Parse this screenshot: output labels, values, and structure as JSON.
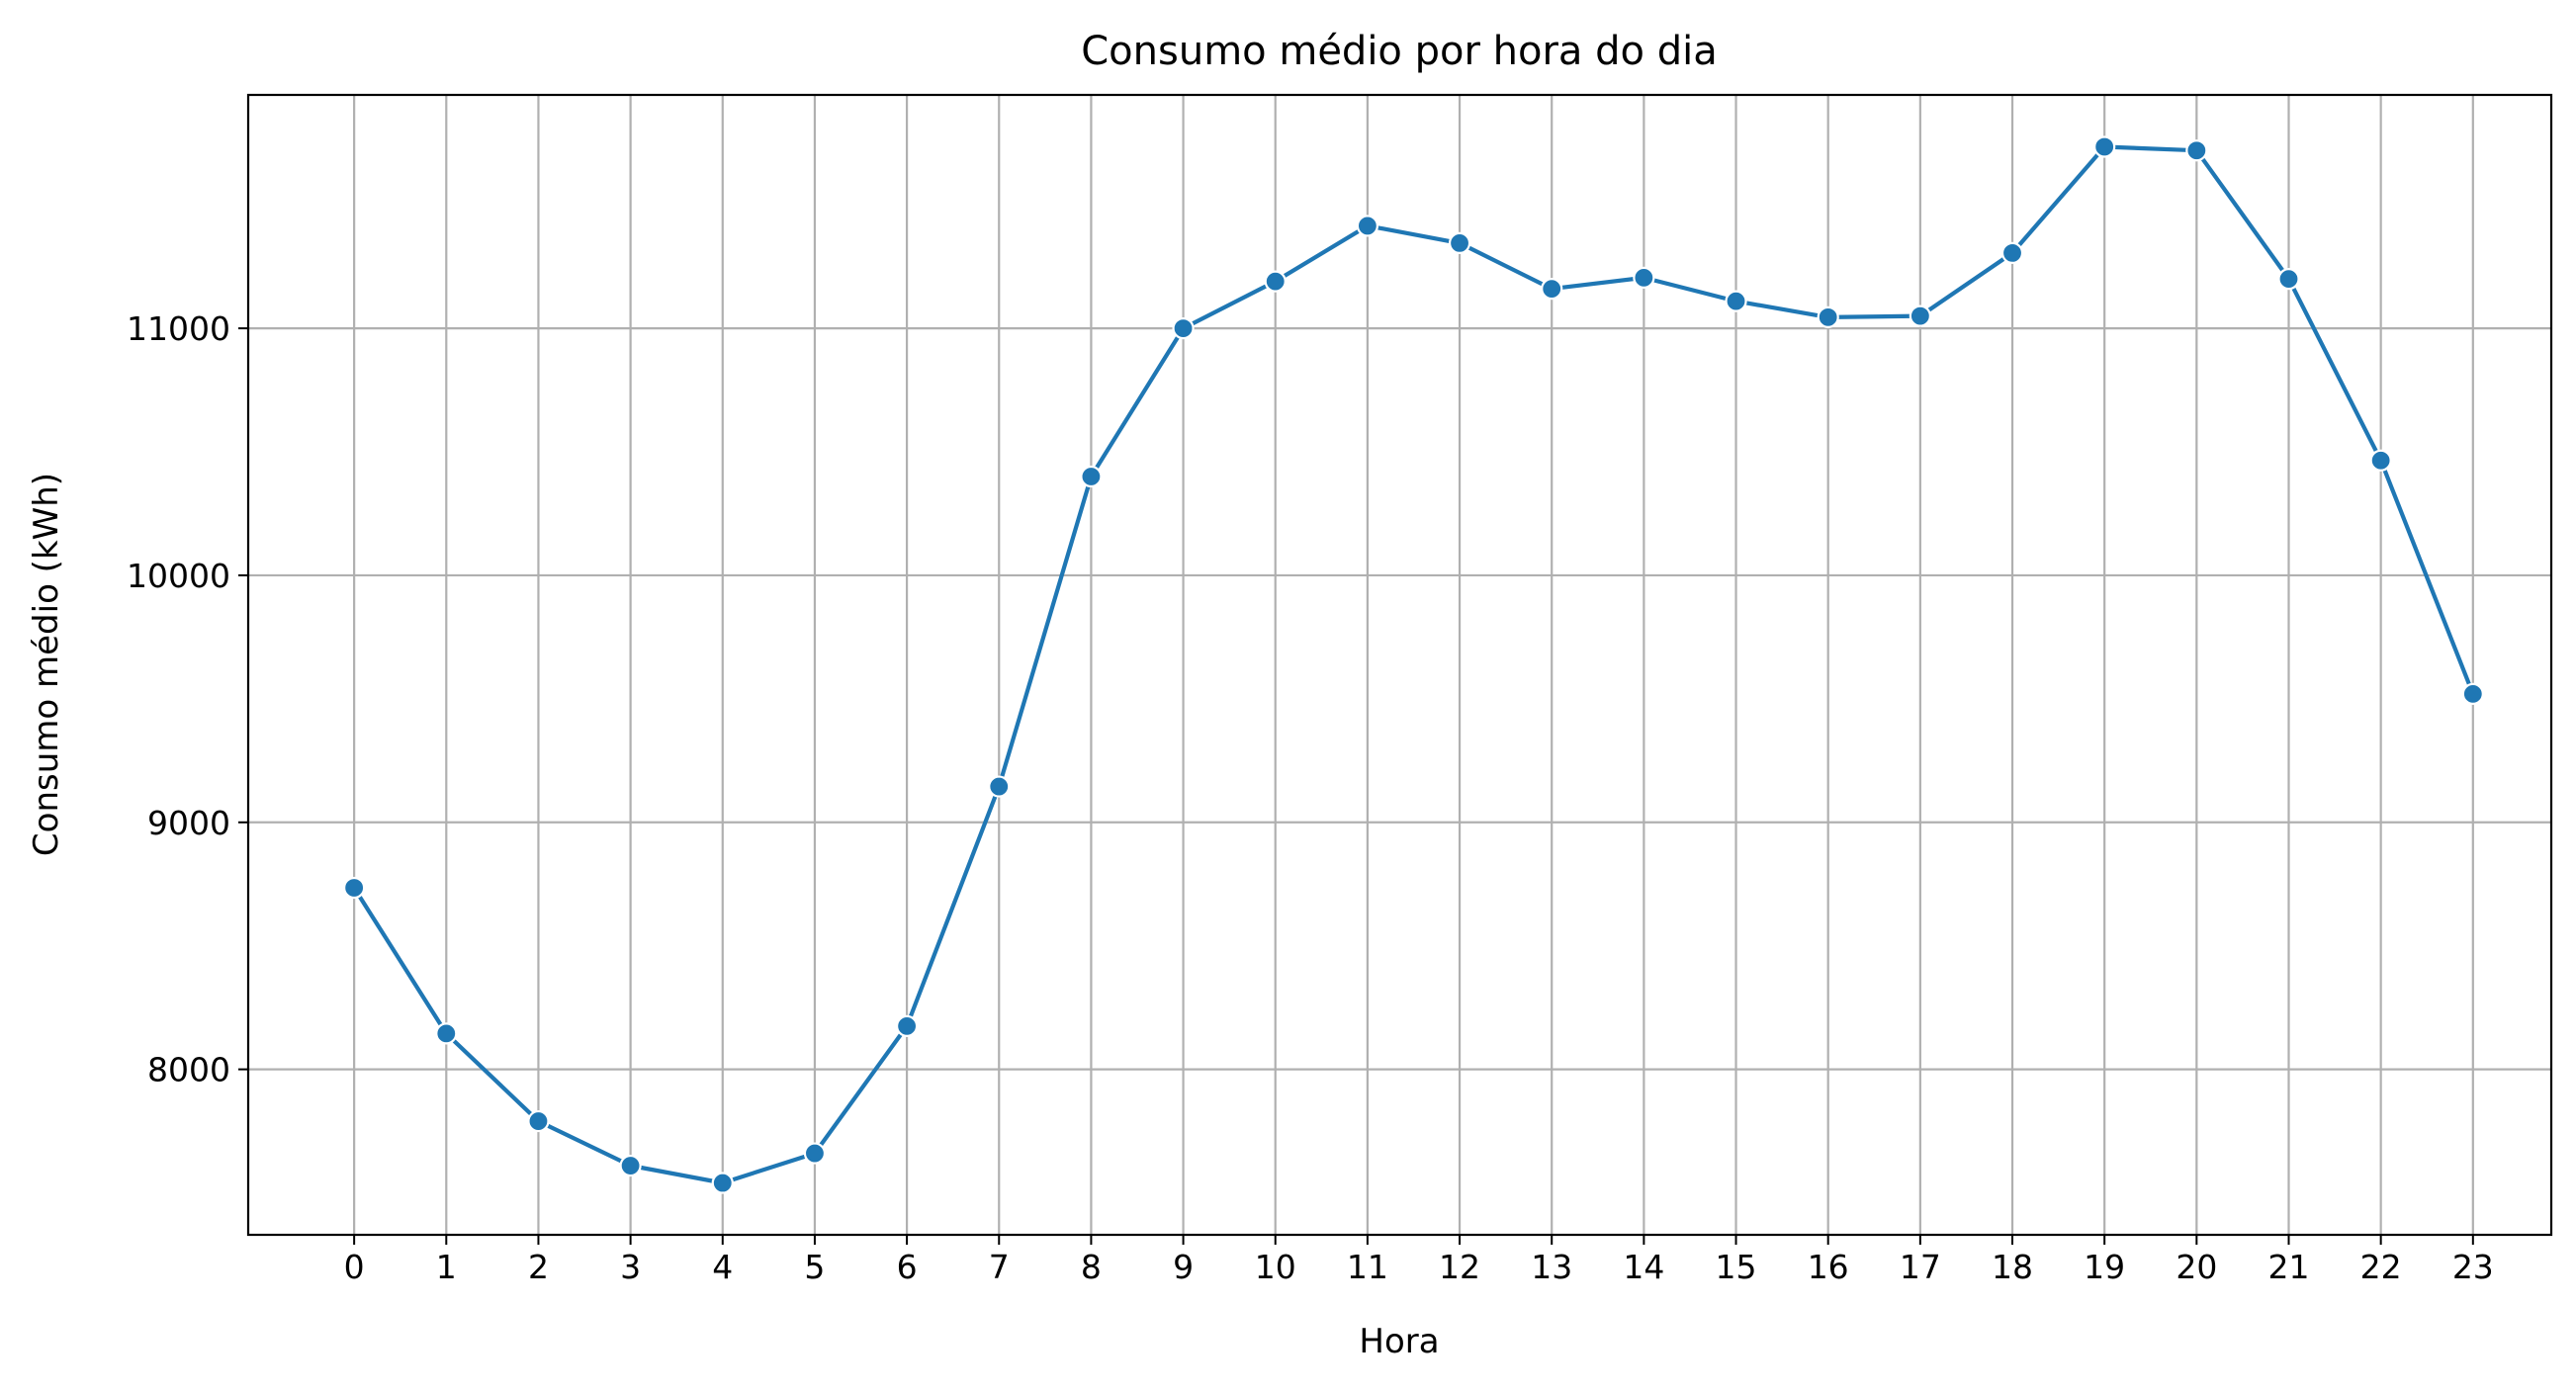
{
  "chart_data": {
    "type": "line",
    "title": "Consumo médio por hora do dia",
    "xlabel": "Hora",
    "ylabel": "Consumo médio (kWh)",
    "x": [
      0,
      1,
      2,
      3,
      4,
      5,
      6,
      7,
      8,
      9,
      10,
      11,
      12,
      13,
      14,
      15,
      16,
      17,
      18,
      19,
      20,
      21,
      22,
      23
    ],
    "xticks": [
      "0",
      "1",
      "2",
      "3",
      "4",
      "5",
      "6",
      "7",
      "8",
      "9",
      "10",
      "11",
      "12",
      "13",
      "14",
      "15",
      "16",
      "17",
      "18",
      "19",
      "20",
      "21",
      "22",
      "23"
    ],
    "series": [
      {
        "values": [
          8735,
          8145,
          7790,
          7610,
          7540,
          7660,
          8175,
          9145,
          10400,
          11000,
          11190,
          11415,
          11345,
          11160,
          11205,
          11110,
          11045,
          11050,
          11305,
          11735,
          11720,
          11200,
          10465,
          9520
        ],
        "color": "#1f77b4"
      }
    ],
    "yticks": [
      8000,
      9000,
      10000,
      11000
    ],
    "xlim": [
      -1.15,
      23.85
    ],
    "ylim": [
      7330,
      11945
    ],
    "grid": true,
    "legend": "none"
  }
}
